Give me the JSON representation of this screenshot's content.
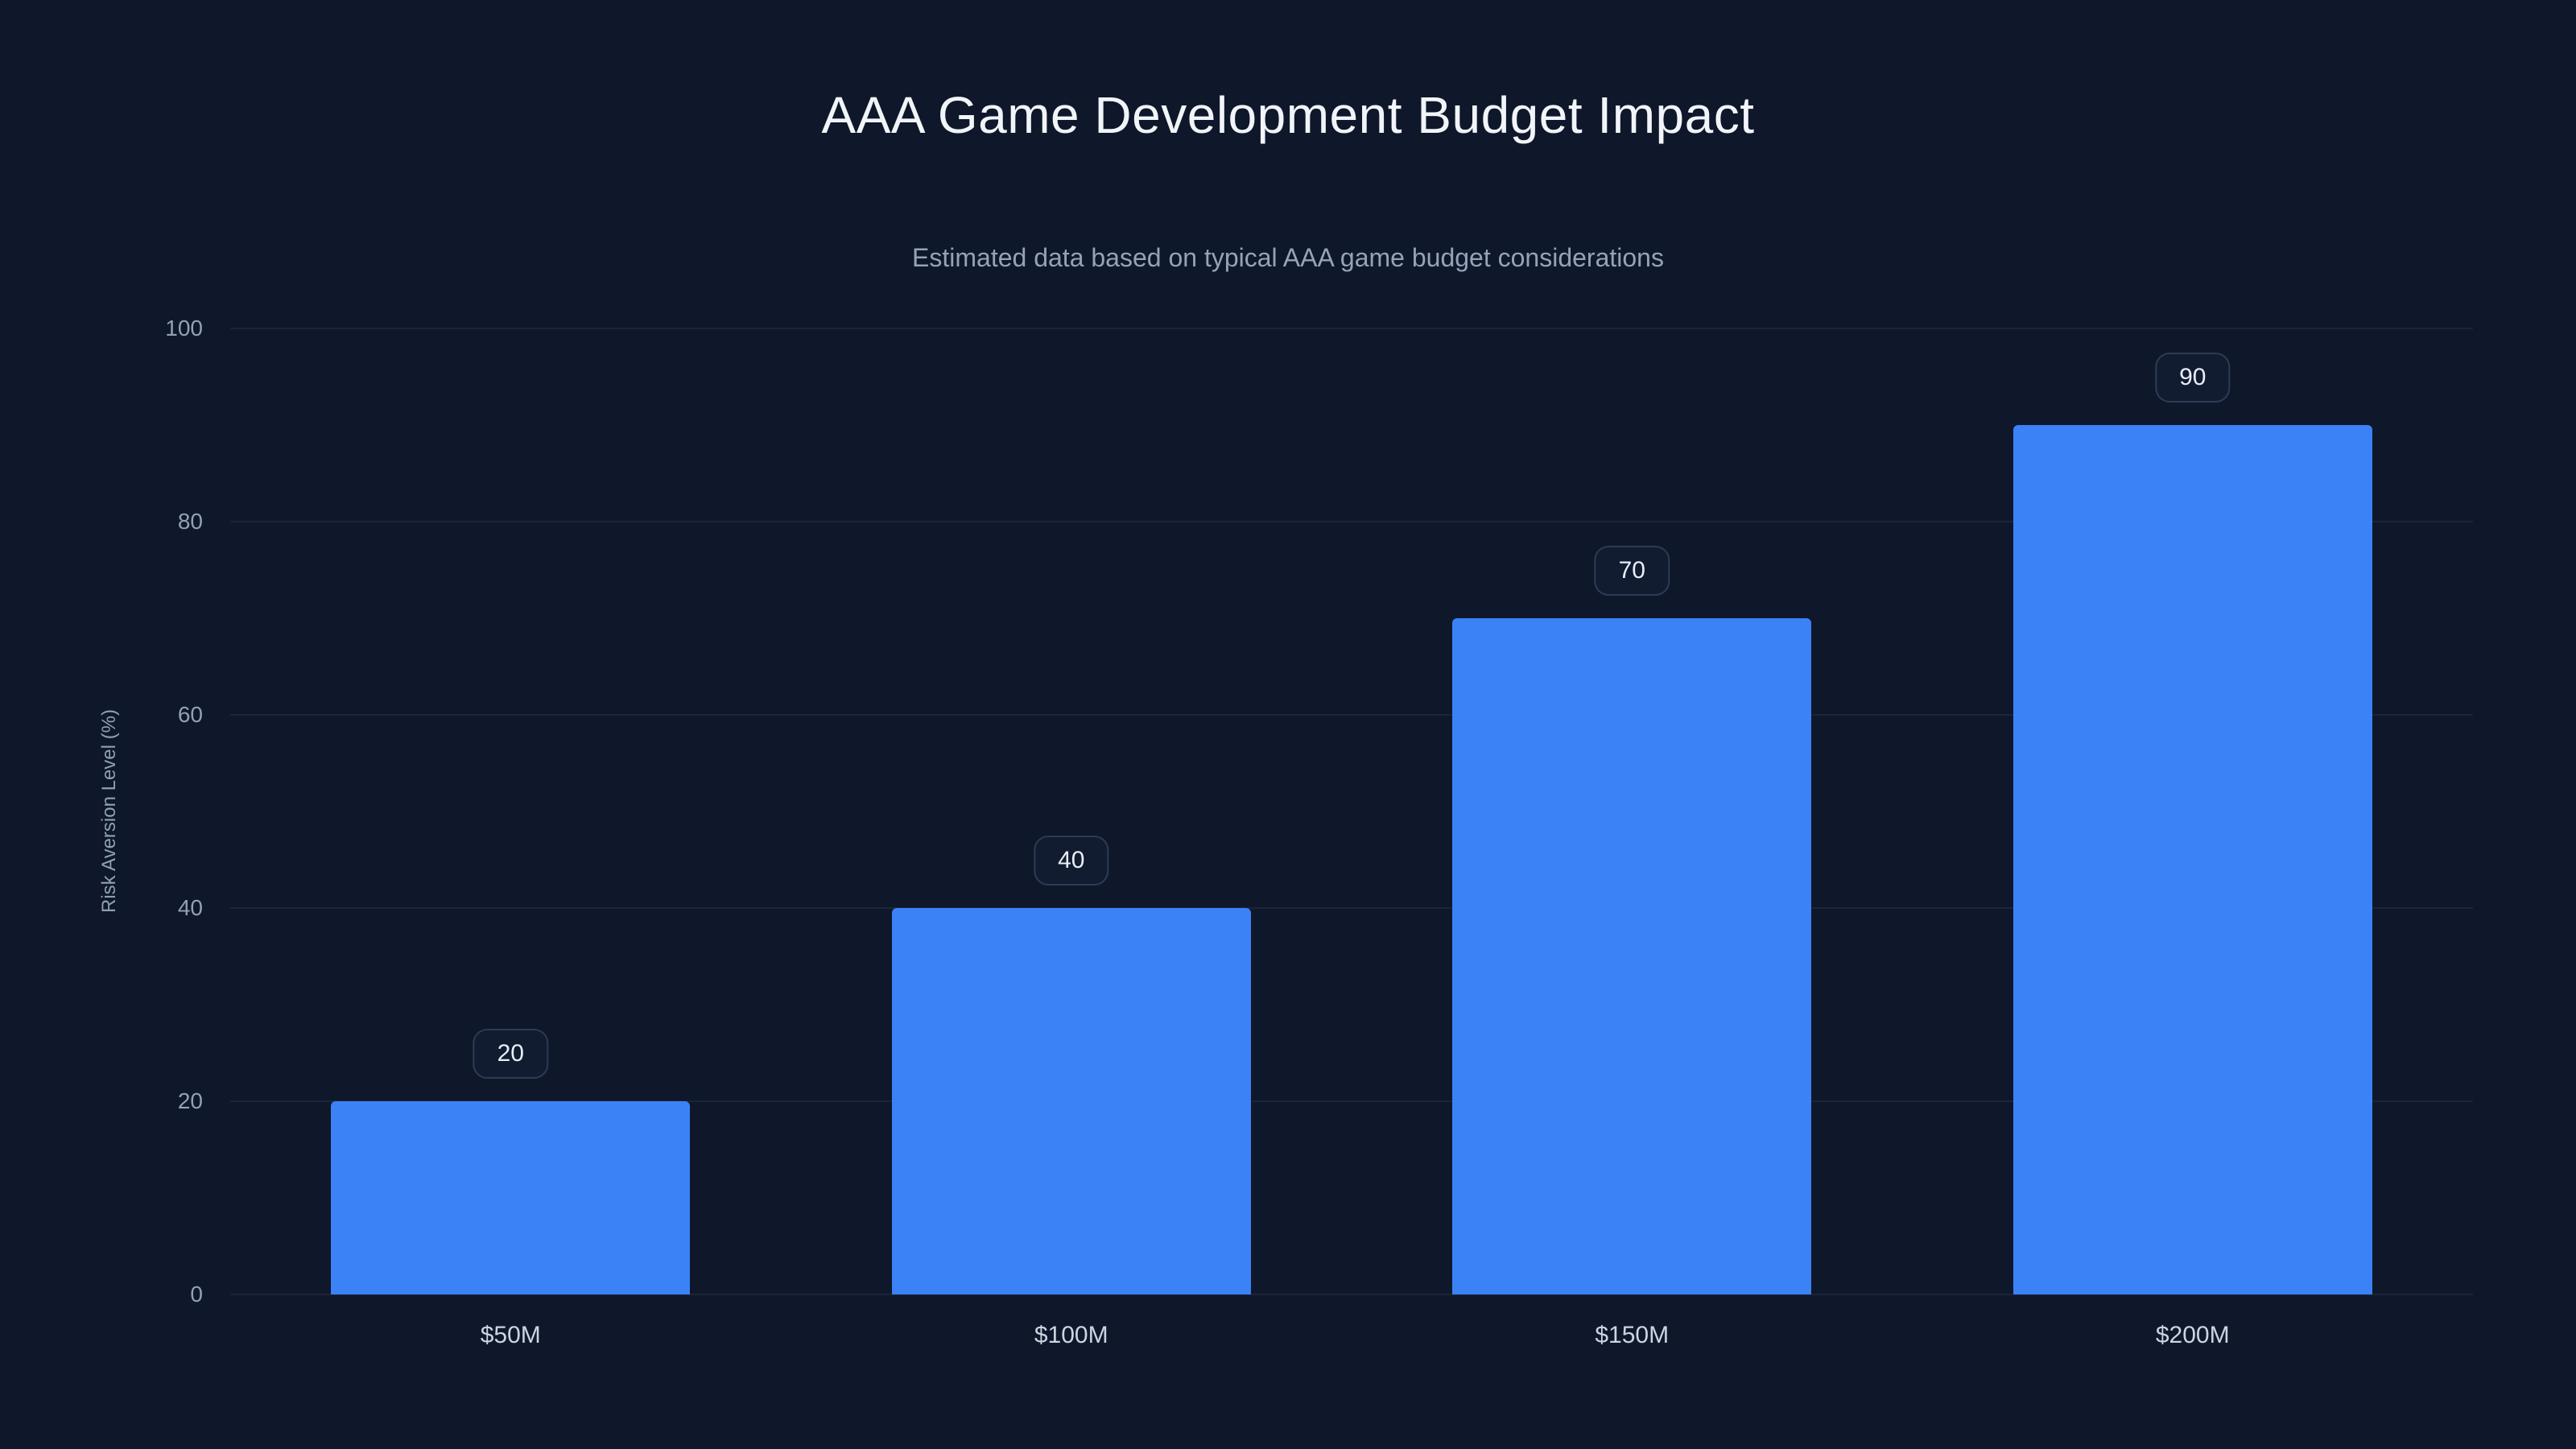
{
  "page": {
    "background": "#0f172a"
  },
  "chart_data": {
    "type": "bar",
    "title": "AAA Game Development Budget Impact",
    "subtitle": "Estimated data based on typical AAA game budget considerations",
    "categories": [
      "$50M",
      "$100M",
      "$150M",
      "$200M"
    ],
    "values": [
      20,
      40,
      70,
      90
    ],
    "data_labels": [
      "20",
      "40",
      "70",
      "90"
    ],
    "xlabel": "",
    "ylabel": "Risk Aversion Level (%)",
    "ylim": [
      0,
      100
    ],
    "yticks": [
      "0",
      "20",
      "40",
      "60",
      "80",
      "100"
    ],
    "grid": true,
    "legend": false,
    "bar_color": "#3b82f6",
    "grid_color": "rgba(148,163,184,0.10)",
    "background": "#0f172a",
    "title_color": "#f1f5f9",
    "subtitle_color": "#94a3b8"
  }
}
